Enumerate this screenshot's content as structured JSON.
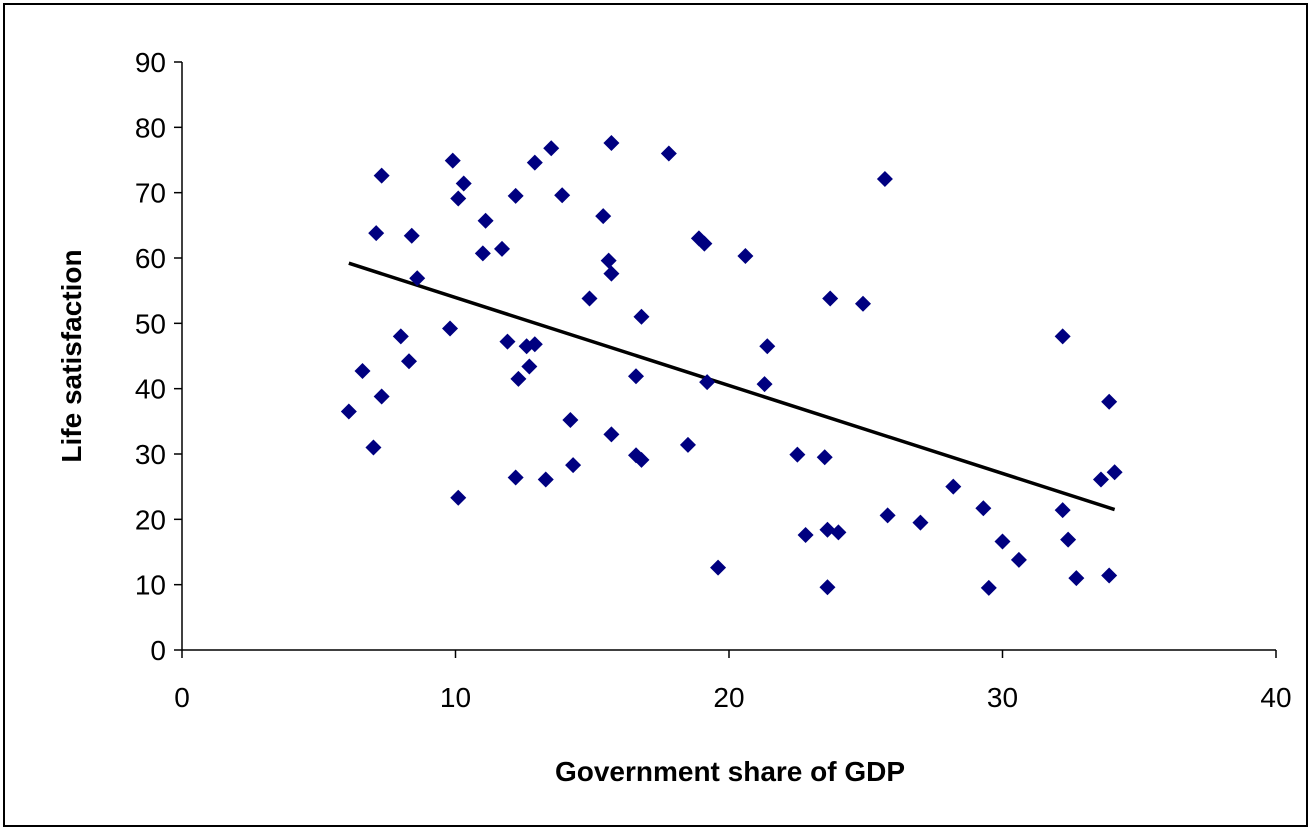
{
  "chart_data": {
    "type": "scatter",
    "title": "",
    "xlabel": "Government share of GDP",
    "ylabel": "Life satisfaction",
    "xlim": [
      0,
      40
    ],
    "ylim": [
      0,
      90
    ],
    "x_ticks": [
      "0",
      "10",
      "20",
      "30",
      "40"
    ],
    "y_ticks": [
      "0",
      "10",
      "20",
      "30",
      "40",
      "50",
      "60",
      "70",
      "80",
      "90"
    ],
    "grid": false,
    "legend": "none",
    "marker_color": "#000080",
    "trendline": {
      "x": [
        6.1,
        34.1
      ],
      "y": [
        59.2,
        21.5
      ],
      "color": "#000000"
    },
    "points": [
      [
        6.1,
        36.5
      ],
      [
        6.6,
        42.7
      ],
      [
        7.0,
        31.0
      ],
      [
        7.1,
        63.8
      ],
      [
        7.3,
        72.6
      ],
      [
        7.3,
        38.8
      ],
      [
        8.0,
        48.0
      ],
      [
        8.3,
        44.2
      ],
      [
        8.4,
        63.4
      ],
      [
        8.6,
        56.9
      ],
      [
        9.8,
        49.2
      ],
      [
        9.9,
        74.9
      ],
      [
        10.1,
        23.3
      ],
      [
        10.1,
        69.1
      ],
      [
        10.3,
        71.4
      ],
      [
        11.0,
        60.7
      ],
      [
        11.1,
        65.7
      ],
      [
        11.7,
        61.4
      ],
      [
        11.9,
        47.2
      ],
      [
        12.2,
        69.5
      ],
      [
        12.2,
        26.4
      ],
      [
        12.3,
        41.5
      ],
      [
        12.6,
        46.5
      ],
      [
        12.7,
        43.4
      ],
      [
        12.9,
        46.8
      ],
      [
        12.9,
        74.6
      ],
      [
        13.3,
        26.1
      ],
      [
        13.5,
        76.8
      ],
      [
        13.9,
        69.6
      ],
      [
        14.2,
        35.2
      ],
      [
        14.3,
        28.3
      ],
      [
        14.9,
        53.8
      ],
      [
        15.4,
        66.4
      ],
      [
        15.6,
        59.6
      ],
      [
        15.7,
        33.0
      ],
      [
        15.7,
        57.6
      ],
      [
        15.7,
        77.6
      ],
      [
        16.6,
        29.8
      ],
      [
        16.6,
        41.9
      ],
      [
        16.8,
        29.1
      ],
      [
        16.8,
        51.0
      ],
      [
        17.8,
        76.0
      ],
      [
        18.5,
        31.4
      ],
      [
        18.9,
        63.0
      ],
      [
        19.1,
        62.2
      ],
      [
        19.2,
        41.0
      ],
      [
        19.6,
        12.6
      ],
      [
        20.6,
        60.3
      ],
      [
        21.3,
        40.7
      ],
      [
        21.4,
        46.5
      ],
      [
        22.5,
        29.9
      ],
      [
        22.8,
        17.6
      ],
      [
        23.5,
        29.5
      ],
      [
        23.6,
        18.4
      ],
      [
        23.6,
        9.6
      ],
      [
        23.7,
        53.8
      ],
      [
        24.0,
        18.0
      ],
      [
        24.9,
        53.0
      ],
      [
        25.7,
        72.1
      ],
      [
        25.8,
        20.6
      ],
      [
        27.0,
        19.5
      ],
      [
        28.2,
        25.0
      ],
      [
        29.3,
        21.7
      ],
      [
        29.5,
        9.5
      ],
      [
        30.0,
        16.6
      ],
      [
        30.6,
        13.8
      ],
      [
        32.2,
        48.0
      ],
      [
        32.2,
        21.4
      ],
      [
        32.4,
        16.9
      ],
      [
        32.7,
        11.0
      ],
      [
        33.6,
        26.1
      ],
      [
        33.9,
        38.0
      ],
      [
        33.9,
        11.4
      ],
      [
        34.1,
        27.2
      ]
    ]
  }
}
